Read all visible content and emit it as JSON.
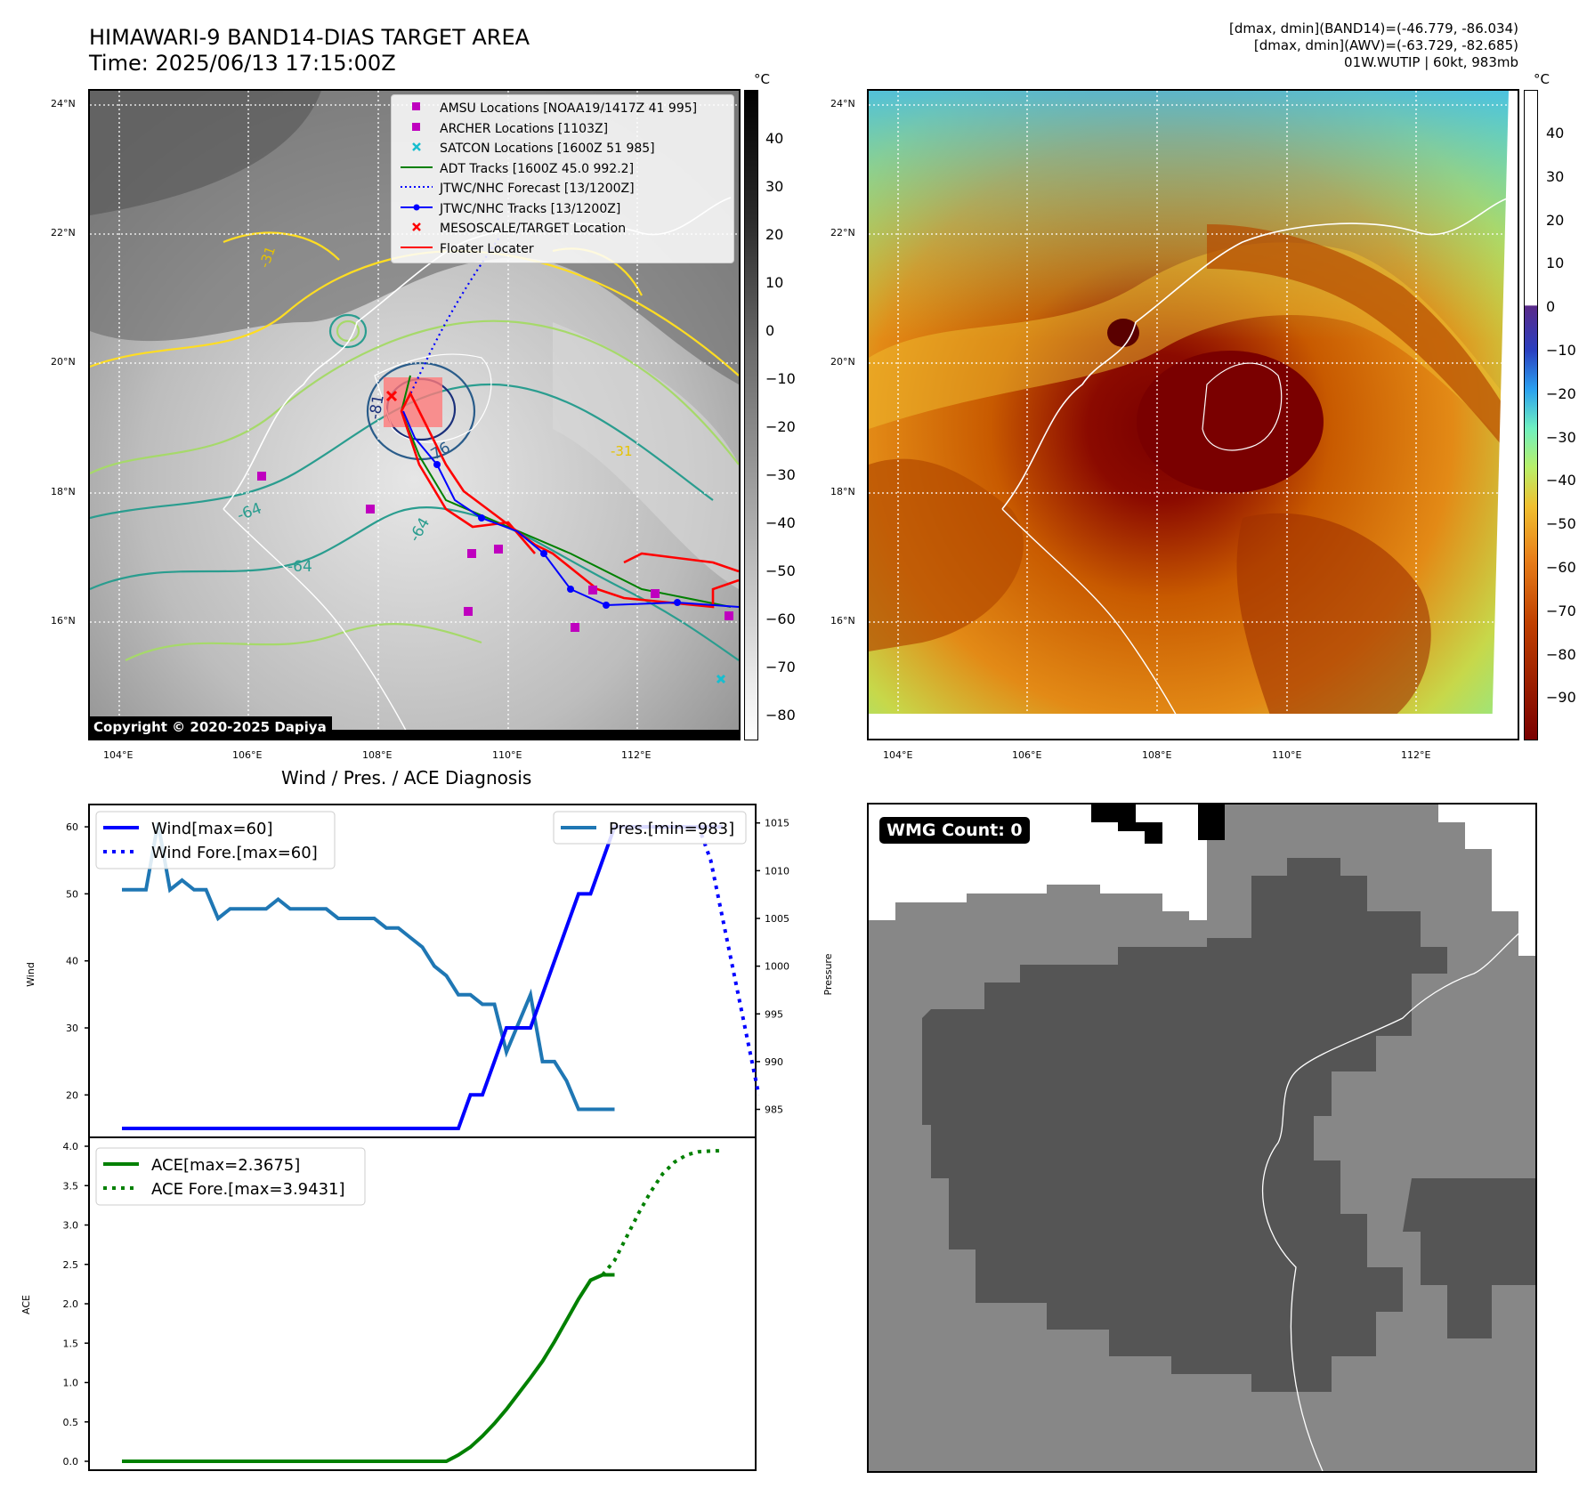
{
  "header": {
    "title_line1": "HIMAWARI-9 BAND14-DIAS TARGET AREA",
    "title_line2": "Time: 2025/06/13 17:15:00Z",
    "info_line1": "[dmax, dmin](BAND14)=(-46.779, -86.034)",
    "info_line2": "[dmax, dmin](AWV)=(-63.729, -82.685)",
    "info_line3": "01W.WUTIP | 60kt, 983mb"
  },
  "map": {
    "lat_labels": [
      "24°N",
      "22°N",
      "20°N",
      "18°N",
      "16°N"
    ],
    "lon_labels": [
      "104°E",
      "106°E",
      "108°E",
      "110°E",
      "112°E"
    ],
    "copyright": "Copyright © 2020-2025 Dapiya",
    "contour_labels": [
      "-81",
      "-76",
      "-64",
      "-64",
      "-64",
      "-31",
      "-31"
    ]
  },
  "colorbar_left": {
    "unit": "°C",
    "ticks": [
      "40",
      "30",
      "20",
      "10",
      "0",
      "−10",
      "−20",
      "−30",
      "−40",
      "−50",
      "−60",
      "−70",
      "−80"
    ]
  },
  "colorbar_right": {
    "unit": "°C",
    "ticks": [
      "40",
      "30",
      "20",
      "10",
      "0",
      "−10",
      "−20",
      "−30",
      "−40",
      "−50",
      "−60",
      "−70",
      "−80",
      "−90"
    ]
  },
  "legend_map": [
    {
      "label": "AMSU Locations [NOAA19/1417Z 41 995]",
      "marker": "square",
      "color": "#bf00bf"
    },
    {
      "label": "ARCHER Locations [1103Z]",
      "marker": "square",
      "color": "#bf00bf"
    },
    {
      "label": "SATCON Locations [1600Z 51 985]",
      "marker": "x",
      "color": "#17becf"
    },
    {
      "label": "ADT Tracks [1600Z 45.0 992.2]",
      "marker": "line",
      "color": "#008000"
    },
    {
      "label": "JTWC/NHC Forecast [13/1200Z]",
      "marker": "dotted",
      "color": "#0000ff"
    },
    {
      "label": "JTWC/NHC Tracks [13/1200Z]",
      "marker": "line-dot",
      "color": "#0000ff"
    },
    {
      "label": "MESOSCALE/TARGET Location",
      "marker": "x",
      "color": "#ff0000"
    },
    {
      "label": "Floater Locater",
      "marker": "line",
      "color": "#ff0000"
    }
  ],
  "diag": {
    "title": "Wind / Pres. / ACE Diagnosis",
    "wind_ylabel": "Wind",
    "pres_ylabel": "Pressure",
    "ace_ylabel": "ACE",
    "legend_wind": "Wind[max=60]",
    "legend_wind_fore": "Wind Fore.[max=60]",
    "legend_pres": "Pres.[min=983]",
    "legend_ace": "ACE[max=2.3675]",
    "legend_ace_fore": "ACE Fore.[max=3.9431]",
    "wmg_label": "WMG Count: 0"
  },
  "chart_data": [
    {
      "type": "line",
      "title": "Wind / Pres. / ACE Diagnosis",
      "ylabel": "Wind",
      "y2label": "Pressure",
      "ylim": [
        15,
        62
      ],
      "y2lim": [
        983,
        1016
      ],
      "xlim": [
        0,
        54
      ],
      "yticks": [
        "20",
        "30",
        "40",
        "50",
        "60"
      ],
      "y2ticks": [
        "985",
        "990",
        "995",
        "1000",
        "1005",
        "1010",
        "1015"
      ],
      "series": [
        {
          "name": "Wind[max=60]",
          "color": "#0000ff",
          "style": "solid",
          "x": [
            2,
            29,
            30,
            31,
            32,
            33,
            34,
            35,
            36,
            37,
            38,
            39,
            40,
            41,
            42,
            43,
            44,
            45,
            46,
            47,
            48,
            49,
            50,
            51,
            52
          ],
          "values": [
            15,
            15,
            15,
            20,
            20,
            25,
            30,
            30,
            30,
            35,
            40,
            45,
            50,
            50,
            55,
            60,
            60,
            60,
            60,
            60,
            60,
            60,
            60,
            60,
            60
          ]
        },
        {
          "name": "Wind Fore.[max=60]",
          "color": "#0000ff",
          "style": "dotted",
          "x": [
            44,
            50,
            51,
            55
          ],
          "values": [
            60,
            60,
            55,
            20
          ]
        },
        {
          "name": "Pres.[min=983]",
          "color": "#1f77b4",
          "style": "solid",
          "x": [
            2,
            4,
            5,
            6,
            7,
            8,
            9,
            10,
            11,
            12,
            13,
            14,
            15,
            16,
            17,
            18,
            19,
            20,
            21,
            22,
            23,
            24,
            25,
            26,
            27,
            28,
            29,
            30,
            31,
            32,
            33,
            34,
            35,
            36,
            37,
            38,
            39,
            40,
            41,
            42,
            43
          ],
          "values": [
            1008,
            1008,
            1015,
            1008,
            1009,
            1008,
            1008,
            1005,
            1006,
            1006,
            1006,
            1006,
            1007,
            1006,
            1006,
            1006,
            1006,
            1005,
            1005,
            1005,
            1005,
            1004,
            1004,
            1003,
            1002,
            1000,
            999,
            997,
            997,
            996,
            996,
            991,
            994,
            997,
            990,
            990,
            988,
            985,
            985,
            985,
            985
          ]
        }
      ]
    },
    {
      "type": "line",
      "ylabel": "ACE",
      "ylim": [
        0,
        4.0
      ],
      "yticks": [
        "0.0",
        "0.5",
        "1.0",
        "1.5",
        "2.0",
        "2.5",
        "3.0",
        "3.5",
        "4.0"
      ],
      "series": [
        {
          "name": "ACE[max=2.3675]",
          "color": "#008000",
          "style": "solid",
          "x": [
            2,
            29,
            30,
            31,
            32,
            33,
            34,
            35,
            36,
            37,
            38,
            39,
            40,
            41,
            42,
            43
          ],
          "values": [
            0,
            0,
            0.08,
            0.18,
            0.32,
            0.48,
            0.66,
            0.86,
            1.06,
            1.27,
            1.52,
            1.79,
            2.06,
            2.3,
            2.3675,
            2.3675
          ]
        },
        {
          "name": "ACE Fore.[max=3.9431]",
          "color": "#008000",
          "style": "dotted",
          "x": [
            42,
            43,
            44,
            45,
            46,
            47,
            48,
            49,
            50,
            51,
            52
          ],
          "values": [
            2.3675,
            2.55,
            2.85,
            3.15,
            3.42,
            3.65,
            3.8,
            3.89,
            3.93,
            3.94,
            3.9431
          ]
        }
      ]
    }
  ]
}
